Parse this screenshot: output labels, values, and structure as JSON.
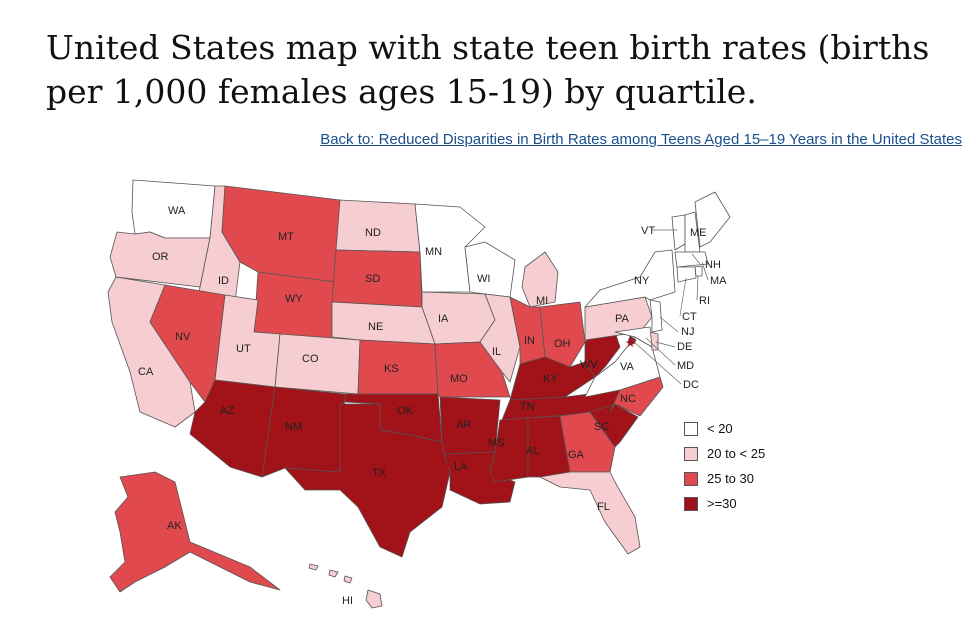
{
  "title": "United States map with state teen birth rates (births per 1,000 females ages 15-19) by quartile.",
  "back_link": "Back to: Reduced Disparities in Birth Rates among Teens Aged 15–19 Years in the United States",
  "colors": {
    "q1": "#ffffff",
    "q2": "#f6cdd0",
    "q3": "#e04a4f",
    "q4": "#a11219",
    "border": "#555555"
  },
  "legend": [
    {
      "label": "< 20",
      "quartile": "q1"
    },
    {
      "label": "20 to < 25",
      "quartile": "q2"
    },
    {
      "label": "25 to 30",
      "quartile": "q3"
    },
    {
      "label": ">=30",
      "quartile": "q4"
    }
  ],
  "states": [
    {
      "abbr": "WA",
      "quartile": "q1"
    },
    {
      "abbr": "OR",
      "quartile": "q2"
    },
    {
      "abbr": "CA",
      "quartile": "q2"
    },
    {
      "abbr": "ID",
      "quartile": "q2"
    },
    {
      "abbr": "NV",
      "quartile": "q3"
    },
    {
      "abbr": "MT",
      "quartile": "q3"
    },
    {
      "abbr": "WY",
      "quartile": "q3"
    },
    {
      "abbr": "UT",
      "quartile": "q2"
    },
    {
      "abbr": "CO",
      "quartile": "q2"
    },
    {
      "abbr": "AZ",
      "quartile": "q4"
    },
    {
      "abbr": "NM",
      "quartile": "q4"
    },
    {
      "abbr": "ND",
      "quartile": "q2"
    },
    {
      "abbr": "SD",
      "quartile": "q3"
    },
    {
      "abbr": "NE",
      "quartile": "q2"
    },
    {
      "abbr": "KS",
      "quartile": "q3"
    },
    {
      "abbr": "OK",
      "quartile": "q4"
    },
    {
      "abbr": "TX",
      "quartile": "q4"
    },
    {
      "abbr": "MN",
      "quartile": "q1"
    },
    {
      "abbr": "IA",
      "quartile": "q2"
    },
    {
      "abbr": "MO",
      "quartile": "q3"
    },
    {
      "abbr": "AR",
      "quartile": "q4"
    },
    {
      "abbr": "LA",
      "quartile": "q4"
    },
    {
      "abbr": "WI",
      "quartile": "q1"
    },
    {
      "abbr": "IL",
      "quartile": "q2"
    },
    {
      "abbr": "MI",
      "quartile": "q2"
    },
    {
      "abbr": "IN",
      "quartile": "q3"
    },
    {
      "abbr": "OH",
      "quartile": "q3"
    },
    {
      "abbr": "KY",
      "quartile": "q4"
    },
    {
      "abbr": "TN",
      "quartile": "q4"
    },
    {
      "abbr": "MS",
      "quartile": "q4"
    },
    {
      "abbr": "AL",
      "quartile": "q4"
    },
    {
      "abbr": "GA",
      "quartile": "q3"
    },
    {
      "abbr": "FL",
      "quartile": "q2"
    },
    {
      "abbr": "SC",
      "quartile": "q4"
    },
    {
      "abbr": "NC",
      "quartile": "q3"
    },
    {
      "abbr": "VA",
      "quartile": "q1"
    },
    {
      "abbr": "WV",
      "quartile": "q4"
    },
    {
      "abbr": "PA",
      "quartile": "q2"
    },
    {
      "abbr": "NY",
      "quartile": "q1"
    },
    {
      "abbr": "VT",
      "quartile": "q1"
    },
    {
      "abbr": "ME",
      "quartile": "q1"
    },
    {
      "abbr": "NH",
      "quartile": "q1"
    },
    {
      "abbr": "MA",
      "quartile": "q1"
    },
    {
      "abbr": "RI",
      "quartile": "q1"
    },
    {
      "abbr": "CT",
      "quartile": "q1"
    },
    {
      "abbr": "NJ",
      "quartile": "q1"
    },
    {
      "abbr": "DE",
      "quartile": "q2"
    },
    {
      "abbr": "MD",
      "quartile": "q1"
    },
    {
      "abbr": "DC",
      "quartile": "q4"
    },
    {
      "abbr": "AK",
      "quartile": "q3"
    },
    {
      "abbr": "HI",
      "quartile": "q2"
    }
  ]
}
